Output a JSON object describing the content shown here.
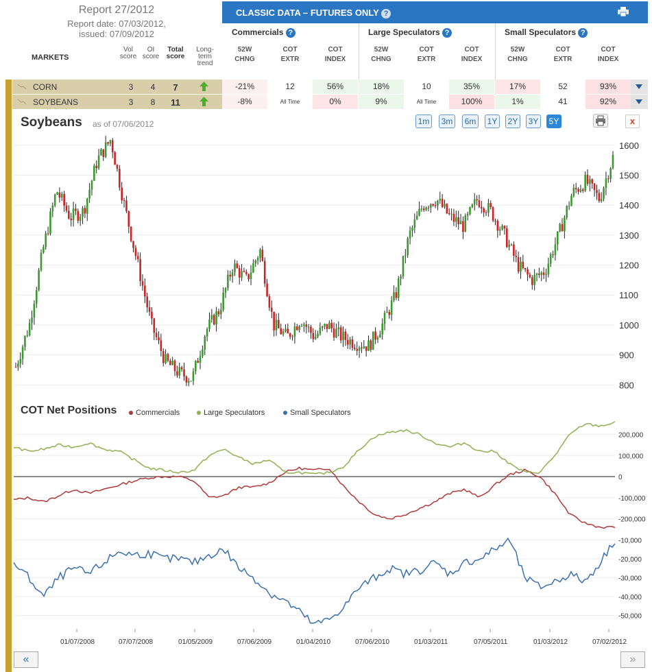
{
  "report": {
    "title": "Report 27/2012",
    "report_date": "Report date: 07/03/2012,",
    "issued": "issued: 07/09/2012"
  },
  "header": {
    "banner": "CLASSIC DATA – FUTURES ONLY",
    "groups": [
      "Commercials",
      "Large Speculators",
      "Small Speculators"
    ],
    "col_52w": [
      "52W",
      "CHNG"
    ],
    "col_cotextr": [
      "COT",
      "EXTR"
    ],
    "col_cotindex": [
      "COT",
      "INDEX"
    ],
    "markets": "MARKETS",
    "vol": [
      "Vol",
      "score"
    ],
    "oi": [
      "OI",
      "score"
    ],
    "total": [
      "Total",
      "score"
    ],
    "trend": [
      "Long-",
      "term",
      "trend"
    ],
    "help": "?"
  },
  "rows": [
    {
      "name": "CORN",
      "vol": "3",
      "oi": "4",
      "total": "7",
      "cells": [
        "-21%",
        "12",
        "56%",
        "18%",
        "10",
        "35%",
        "17%",
        "52",
        "93%"
      ],
      "bg": [
        "#fdf0f0",
        "#ffffff",
        "#eaf7ea",
        "#eaf7ea",
        "#ffffff",
        "#eaf7ea",
        "#fde5e8",
        "#ffffff",
        "#fde0e4"
      ]
    },
    {
      "name": "SOYBEANS",
      "vol": "3",
      "oi": "8",
      "total": "11",
      "cells": [
        "-8%",
        "All Time",
        "0%",
        "9%",
        "All Time",
        "100%",
        "1%",
        "41",
        "92%"
      ],
      "bg": [
        "#fdf0f0",
        "#ffffff",
        "#fde5e8",
        "#eaf7ea",
        "#ffffff",
        "#fde0e4",
        "#eaf7ea",
        "#ffffff",
        "#fde0e4"
      ]
    }
  ],
  "chart": {
    "title": "Soybeans",
    "asof": "as of 07/06/2012",
    "ranges": [
      "1m",
      "3m",
      "6m",
      "1Y",
      "2Y",
      "3Y",
      "5Y"
    ],
    "active_range": "5Y",
    "close": "x"
  },
  "cot": {
    "title": "COT Net Positions",
    "legend": [
      "Commercials",
      "Large Speculators",
      "Small Speculators"
    ]
  },
  "colors": {
    "up": "#3a9a2e",
    "down": "#cc2222",
    "commercials": "#b03838",
    "large_speculators": "#8fb04f",
    "small_speculators": "#3a6fb0"
  },
  "nav": {
    "prev": "«",
    "next": "»"
  },
  "chart_data": [
    {
      "type": "candlestick",
      "title": "Soybeans",
      "ylim": [
        780,
        1650
      ],
      "y_ticks": [
        800,
        900,
        1000,
        1100,
        1200,
        1300,
        1400,
        1500,
        1600
      ],
      "x": [
        "2007-07",
        "2007-10",
        "2008-01",
        "2008-03",
        "2008-04",
        "2008-05",
        "2008-06",
        "2008-07",
        "2008-08",
        "2008-09",
        "2008-10",
        "2008-11",
        "2008-12",
        "2009-01",
        "2009-03",
        "2009-04",
        "2009-05",
        "2009-06",
        "2009-07",
        "2009-08",
        "2009-10",
        "2009-11",
        "2010-01",
        "2010-02",
        "2010-04",
        "2010-05",
        "2010-06",
        "2010-07",
        "2010-09",
        "2010-10",
        "2010-12",
        "2011-01",
        "2011-03",
        "2011-05",
        "2011-06",
        "2011-08",
        "2011-09",
        "2011-10",
        "2011-12",
        "2012-01",
        "2012-03",
        "2012-04",
        "2012-05",
        "2012-06",
        "2012-07"
      ],
      "close": [
        860,
        1000,
        1250,
        1450,
        1360,
        1380,
        1550,
        1620,
        1400,
        1200,
        1000,
        880,
        840,
        820,
        980,
        1050,
        1200,
        1150,
        1250,
        1000,
        960,
        1020,
        960,
        1000,
        960,
        940,
        930,
        1000,
        1100,
        1300,
        1400,
        1420,
        1360,
        1330,
        1420,
        1380,
        1300,
        1200,
        1150,
        1180,
        1300,
        1440,
        1480,
        1420,
        1560
      ],
      "ytick_labels": [
        "800",
        "900",
        "1000",
        "1100",
        "1200",
        "1300",
        "1400",
        "1500",
        "1600"
      ]
    },
    {
      "type": "line",
      "title": "COT Net Positions",
      "x_labels": [
        "01/07/2008",
        "07/07/2008",
        "01/05/2009",
        "07/06/2009",
        "01/04/2010",
        "07/06/2010",
        "01/03/2011",
        "07/05/2011",
        "01/03/2012",
        "07/02/2012"
      ],
      "ylim_top": [
        -250000,
        270000
      ],
      "y_ticks_top": [
        "200,000",
        "100,000",
        "0",
        "-100,000",
        "-200,000"
      ],
      "ylim_bottom": [
        -57000,
        -8000
      ],
      "y_ticks_bottom": [
        "-10,000",
        "-20,000",
        "-30,000",
        "-40,000",
        "-50,000"
      ],
      "series": [
        {
          "name": "Commercials",
          "values": [
            -110000,
            -100000,
            -120000,
            -90000,
            -60000,
            -80000,
            -60000,
            -40000,
            -20000,
            -5000,
            0,
            0,
            -20000,
            -100000,
            -90000,
            -50000,
            -50000,
            -30000,
            20000,
            40000,
            30000,
            40000,
            -50000,
            -120000,
            -180000,
            -200000,
            -180000,
            -150000,
            -120000,
            -80000,
            -60000,
            -100000,
            -40000,
            10000,
            30000,
            0,
            -80000,
            -180000,
            -220000,
            -240000,
            -240000
          ]
        },
        {
          "name": "Large Speculators",
          "values": [
            140000,
            120000,
            130000,
            150000,
            140000,
            160000,
            130000,
            120000,
            80000,
            40000,
            30000,
            20000,
            30000,
            100000,
            130000,
            90000,
            60000,
            80000,
            20000,
            20000,
            10000,
            20000,
            50000,
            130000,
            190000,
            210000,
            220000,
            200000,
            160000,
            140000,
            160000,
            120000,
            120000,
            60000,
            20000,
            20000,
            100000,
            200000,
            250000,
            240000,
            255000
          ]
        },
        {
          "name": "Small Speculators",
          "values": [
            -22000,
            -30000,
            -40000,
            -30000,
            -25000,
            -28000,
            -22000,
            -16000,
            -18000,
            -17000,
            -20000,
            -20000,
            -22000,
            -18000,
            -15000,
            -25000,
            -30000,
            -38000,
            -42000,
            -48000,
            -55000,
            -52000,
            -45000,
            -35000,
            -30000,
            -25000,
            -28000,
            -26000,
            -22000,
            -28000,
            -22000,
            -20000,
            -15000,
            -10000,
            -30000,
            -35000,
            -32000,
            -28000,
            -32000,
            -22000,
            -10000
          ]
        }
      ]
    }
  ]
}
